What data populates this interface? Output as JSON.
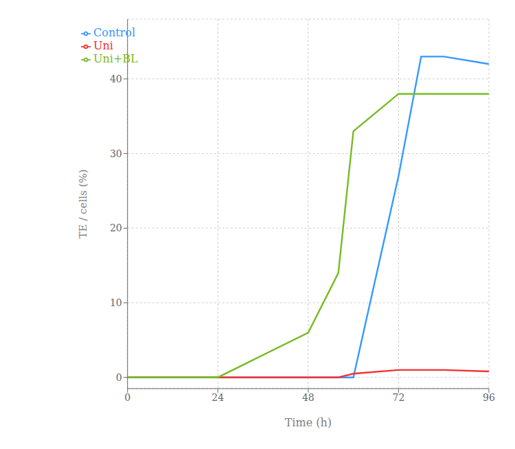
{
  "chart_data": {
    "type": "line",
    "xlabel": "Time (h)",
    "ylabel": "TE / cells (%)",
    "series": [
      {
        "name": "Control",
        "color": "#3399FF",
        "x": [
          0,
          24,
          48,
          56,
          60,
          72,
          78,
          84,
          96
        ],
        "values": [
          0,
          0,
          0,
          0,
          0,
          27,
          43,
          43,
          42
        ]
      },
      {
        "name": "Uni",
        "color": "#EE3333",
        "x": [
          0,
          24,
          48,
          56,
          60,
          72,
          84,
          96
        ],
        "values": [
          0,
          0,
          0,
          0,
          0.5,
          1.0,
          1.0,
          0.8
        ]
      },
      {
        "name": "Uni+BL",
        "color": "#77BB22",
        "x": [
          0,
          24,
          48,
          56,
          60,
          72,
          84,
          96
        ],
        "values": [
          0,
          0,
          6,
          14,
          33,
          38,
          38,
          38
        ]
      }
    ],
    "xlim": [
      0,
      96
    ],
    "ylim": [
      -1.5,
      48
    ],
    "xticks": [
      0,
      24,
      48,
      72,
      96
    ],
    "yticks": [
      0,
      10,
      20,
      30,
      40
    ],
    "grid": true,
    "legend": "upper left"
  }
}
